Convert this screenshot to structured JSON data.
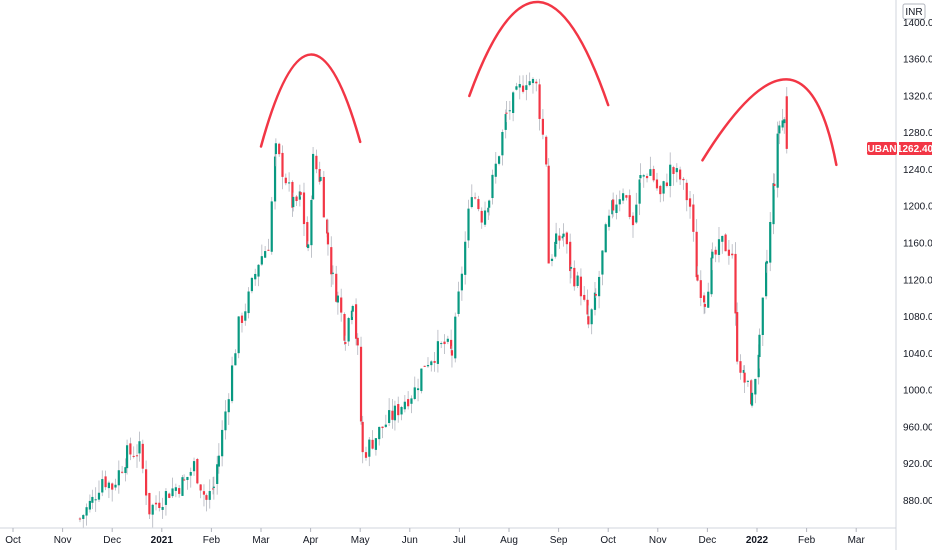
{
  "chart_data": {
    "type": "candlestick",
    "symbol": "AUBANK",
    "currency": "INR",
    "last_price": "1262.40",
    "price_range": [
      850,
      1420
    ],
    "price_ticks": [
      "880.00",
      "920.00",
      "960.00",
      "1000.00",
      "1040.00",
      "1080.00",
      "1120.00",
      "1160.00",
      "1200.00",
      "1240.00",
      "1280.00",
      "1320.00",
      "1360.00",
      "1400.00"
    ],
    "time_labels": [
      {
        "label": "Oct",
        "t": 0
      },
      {
        "label": "Nov",
        "t": 1
      },
      {
        "label": "Dec",
        "t": 2
      },
      {
        "label": "2021",
        "t": 3,
        "year": true
      },
      {
        "label": "Feb",
        "t": 4
      },
      {
        "label": "Mar",
        "t": 5
      },
      {
        "label": "Apr",
        "t": 6
      },
      {
        "label": "May",
        "t": 7
      },
      {
        "label": "Jun",
        "t": 8
      },
      {
        "label": "Jul",
        "t": 9
      },
      {
        "label": "Aug",
        "t": 10
      },
      {
        "label": "Sep",
        "t": 11
      },
      {
        "label": "Oct",
        "t": 12
      },
      {
        "label": "Nov",
        "t": 13
      },
      {
        "label": "Dec",
        "t": 14
      },
      {
        "label": "2022",
        "t": 15,
        "year": true
      },
      {
        "label": "Feb",
        "t": 16
      },
      {
        "label": "Mar",
        "t": 17
      }
    ],
    "series_anchors": [
      [
        1.35,
        860
      ],
      [
        1.6,
        880
      ],
      [
        1.8,
        905
      ],
      [
        2.0,
        895
      ],
      [
        2.3,
        930
      ],
      [
        2.55,
        935
      ],
      [
        2.75,
        870
      ],
      [
        2.95,
        880
      ],
      [
        3.15,
        890
      ],
      [
        3.45,
        900
      ],
      [
        3.65,
        918
      ],
      [
        3.9,
        880
      ],
      [
        4.05,
        895
      ],
      [
        4.15,
        930
      ],
      [
        4.35,
        1000
      ],
      [
        4.55,
        1070
      ],
      [
        4.75,
        1100
      ],
      [
        4.95,
        1140
      ],
      [
        5.15,
        1160
      ],
      [
        5.3,
        1260
      ],
      [
        5.5,
        1230
      ],
      [
        5.65,
        1200
      ],
      [
        5.8,
        1210
      ],
      [
        5.95,
        1150
      ],
      [
        6.05,
        1250
      ],
      [
        6.2,
        1230
      ],
      [
        6.35,
        1160
      ],
      [
        6.45,
        1120
      ],
      [
        6.55,
        1100
      ],
      [
        6.7,
        1060
      ],
      [
        6.85,
        1100
      ],
      [
        6.95,
        1040
      ],
      [
        7.05,
        930
      ],
      [
        7.25,
        945
      ],
      [
        7.45,
        960
      ],
      [
        7.7,
        975
      ],
      [
        7.9,
        990
      ],
      [
        8.1,
        1000
      ],
      [
        8.3,
        1030
      ],
      [
        8.5,
        1040
      ],
      [
        8.7,
        1050
      ],
      [
        8.85,
        1040
      ],
      [
        9.05,
        1130
      ],
      [
        9.25,
        1220
      ],
      [
        9.45,
        1190
      ],
      [
        9.6,
        1210
      ],
      [
        9.8,
        1260
      ],
      [
        9.95,
        1300
      ],
      [
        10.15,
        1320
      ],
      [
        10.35,
        1340
      ],
      [
        10.55,
        1330
      ],
      [
        10.75,
        1250
      ],
      [
        10.8,
        1140
      ],
      [
        10.95,
        1160
      ],
      [
        11.1,
        1170
      ],
      [
        11.25,
        1130
      ],
      [
        11.45,
        1110
      ],
      [
        11.6,
        1070
      ],
      [
        11.75,
        1100
      ],
      [
        11.95,
        1170
      ],
      [
        12.1,
        1200
      ],
      [
        12.3,
        1220
      ],
      [
        12.5,
        1180
      ],
      [
        12.65,
        1230
      ],
      [
        12.85,
        1240
      ],
      [
        13.05,
        1210
      ],
      [
        13.25,
        1240
      ],
      [
        13.45,
        1230
      ],
      [
        13.65,
        1200
      ],
      [
        13.8,
        1120
      ],
      [
        13.95,
        1100
      ],
      [
        14.1,
        1140
      ],
      [
        14.3,
        1160
      ],
      [
        14.5,
        1150
      ],
      [
        14.6,
        1040
      ],
      [
        14.75,
        1010
      ],
      [
        14.9,
        990
      ],
      [
        15.05,
        1050
      ],
      [
        15.2,
        1140
      ],
      [
        15.35,
        1230
      ],
      [
        15.45,
        1290
      ],
      [
        15.55,
        1295
      ],
      [
        15.6,
        1262.4
      ]
    ],
    "annotations": [
      {
        "type": "arc",
        "from": [
          5.0,
          1265
        ],
        "peak": [
          6.0,
          1365
        ],
        "to": [
          7.0,
          1270
        ]
      },
      {
        "type": "arc",
        "from": [
          9.2,
          1320
        ],
        "peak": [
          10.6,
          1430
        ],
        "to": [
          12.0,
          1310
        ]
      },
      {
        "type": "arc",
        "from": [
          13.9,
          1250
        ],
        "peak": [
          15.6,
          1338
        ],
        "to": [
          16.6,
          1245
        ]
      }
    ],
    "colors": {
      "up": "#26a69a",
      "up_bar": "#089981",
      "down": "#f23645",
      "wick": "#b2b5be",
      "annotation": "#f23645",
      "badge": "#f23645",
      "axis_line": "#b2b5be",
      "text": "#131722"
    }
  }
}
